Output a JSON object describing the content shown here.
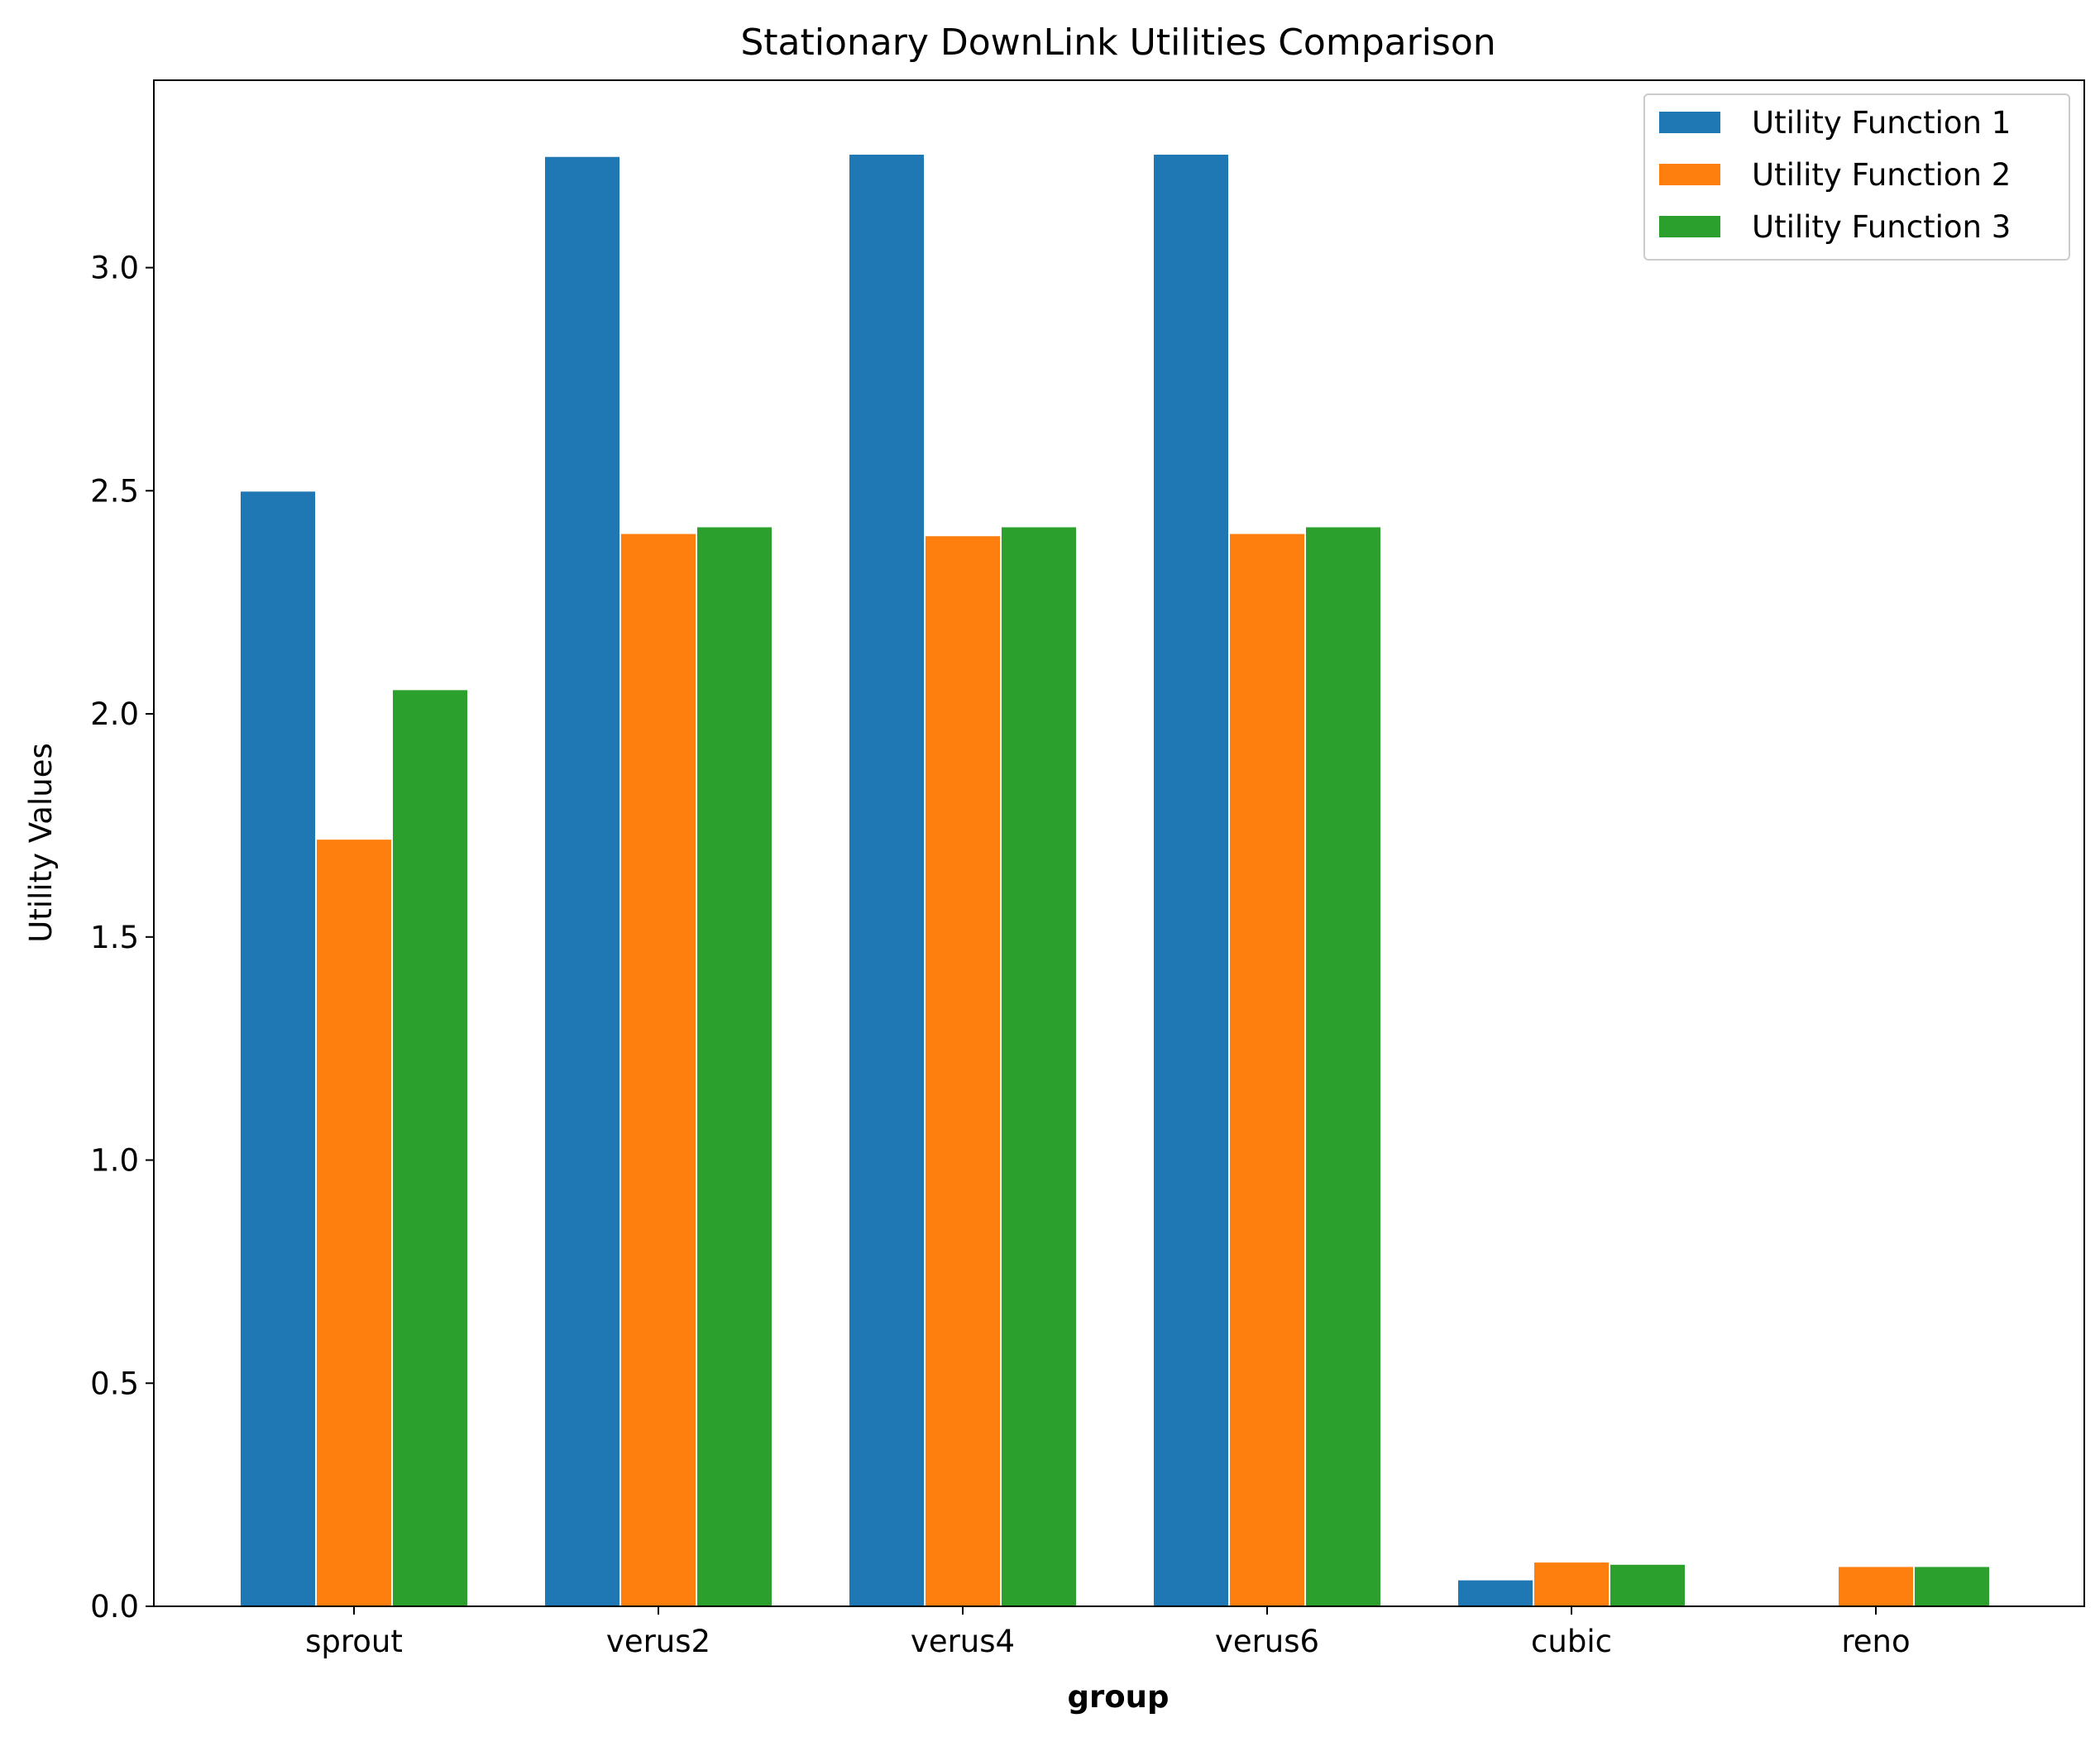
{
  "chart_data": {
    "type": "bar",
    "title": "Stationary DownLink Utilities Comparison",
    "xlabel": "group",
    "ylabel": "Utility Values",
    "categories": [
      "sprout",
      "verus2",
      "verus4",
      "verus6",
      "cubic",
      "reno"
    ],
    "series": [
      {
        "name": "Utility Function 1",
        "color": "#1f77b4",
        "values": [
          2.5,
          3.25,
          3.255,
          3.255,
          0.06,
          0.0
        ]
      },
      {
        "name": "Utility Function 2",
        "color": "#ff7f0e",
        "values": [
          1.72,
          2.405,
          2.4,
          2.405,
          0.1,
          0.09
        ]
      },
      {
        "name": "Utility Function 3",
        "color": "#2ca02c",
        "values": [
          2.055,
          2.42,
          2.42,
          2.42,
          0.095,
          0.09
        ]
      }
    ],
    "ylim": [
      0,
      3.42
    ],
    "yticks": [
      "0.0",
      "0.5",
      "1.0",
      "1.5",
      "2.0",
      "2.5",
      "3.0"
    ],
    "grid": false,
    "legend_position": "top-right"
  }
}
